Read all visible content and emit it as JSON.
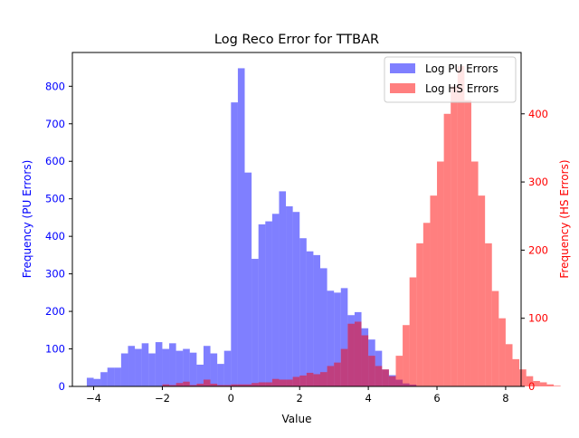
{
  "chart_data": {
    "type": "histogram",
    "title": "Log Reco Error for TTBAR",
    "xlabel": "Value",
    "ylabel_left": "Frequency (PU Errors)",
    "ylabel_right": "Frequency (HS Errors)",
    "xlim": [
      -4.62,
      8.45
    ],
    "ylim_left": [
      0,
      890
    ],
    "ylim_right": [
      0,
      490
    ],
    "x_ticks": [
      -4,
      -2,
      0,
      2,
      4,
      6,
      8
    ],
    "y_ticks_left": [
      0,
      100,
      200,
      300,
      400,
      500,
      600,
      700,
      800
    ],
    "y_ticks_right": [
      0,
      100,
      200,
      300,
      400
    ],
    "grid": false,
    "legend_position": "upper right",
    "colors": {
      "pu": "#0000ff",
      "hs": "#ff0000",
      "pu_axis": "#0000ff",
      "hs_axis": "#ff0000"
    },
    "series": [
      {
        "name": "Log PU Errors",
        "axis": "left",
        "color": "#0000ff",
        "opacity": 0.5,
        "bin_start": -4.2,
        "bin_width": 0.2,
        "counts": [
          23,
          20,
          38,
          50,
          50,
          88,
          108,
          100,
          115,
          88,
          118,
          100,
          115,
          95,
          100,
          90,
          58,
          108,
          88,
          60,
          95,
          757,
          848,
          570,
          340,
          432,
          440,
          460,
          520,
          480,
          465,
          395,
          360,
          350,
          315,
          255,
          250,
          262,
          190,
          198,
          155,
          125,
          95,
          45,
          30,
          18,
          8,
          5
        ]
      },
      {
        "name": "Log HS Errors",
        "axis": "right",
        "color": "#ff0000",
        "opacity": 0.5,
        "bin_start": -4.2,
        "bin_width": 0.2,
        "counts": [
          0,
          0,
          0,
          0,
          0,
          0,
          0,
          0,
          0,
          0,
          0,
          3,
          2,
          5,
          7,
          2,
          4,
          10,
          4,
          2,
          2,
          3,
          3,
          3,
          5,
          6,
          6,
          11,
          10,
          10,
          14,
          16,
          20,
          18,
          21,
          30,
          35,
          55,
          92,
          95,
          75,
          45,
          30,
          25,
          15,
          45,
          90,
          160,
          210,
          240,
          280,
          330,
          400,
          440,
          470,
          420,
          330,
          280,
          210,
          140,
          100,
          62,
          40,
          25,
          15,
          8,
          6,
          3,
          1
        ]
      }
    ]
  }
}
